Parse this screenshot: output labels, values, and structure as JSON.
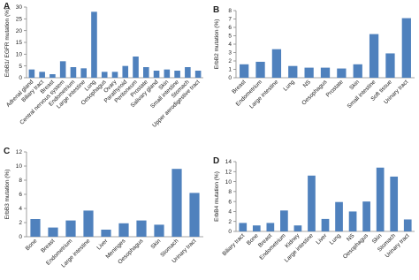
{
  "chart_data": [
    {
      "type": "bar",
      "label": "A",
      "y_label": "ErbB1/ EGFR mutation (%)",
      "color": "#4f81bd",
      "categories": [
        "Adrenal gland",
        "Biliary tract",
        "Breast",
        "Central nervous system",
        "Endometrium",
        "Large intestine",
        "Lung",
        "Oesophagus",
        "Ovary",
        "Parathyroid",
        "Peritoneum",
        "Prostate",
        "Salivary gland",
        "Skin",
        "Small intestine",
        "Stomach",
        "Upper aerodigestive tract"
      ],
      "values": [
        3.5,
        2.5,
        1.5,
        7,
        4.5,
        4,
        28,
        2.5,
        2.5,
        5,
        9,
        4.5,
        3,
        3.5,
        3,
        4.5,
        3
      ],
      "ylim": [
        0,
        30
      ],
      "yticks": [
        0,
        5,
        10,
        15,
        20,
        25,
        30
      ]
    },
    {
      "type": "bar",
      "label": "B",
      "y_label": "ErbB2 mutation (%)",
      "color": "#4f81bd",
      "categories": [
        "Breast",
        "Endometrium",
        "Large intestine",
        "Lung",
        "NS",
        "Oesophagus",
        "Prostate",
        "Skin",
        "Small intestine",
        "Soft tissue",
        "Urinary tract"
      ],
      "values": [
        1.6,
        1.9,
        3.4,
        1.4,
        1.2,
        1.2,
        1.1,
        1.6,
        5.2,
        2.9,
        7.1
      ],
      "ylim": [
        0,
        8
      ],
      "yticks": [
        0,
        1,
        2,
        3,
        4,
        5,
        6,
        7,
        8
      ]
    },
    {
      "type": "bar",
      "label": "C",
      "y_label": "ErbB3 mutation (%)",
      "color": "#4f81bd",
      "categories": [
        "Bone",
        "Breast",
        "Endometrium",
        "Large intestine",
        "Liver",
        "Meninges",
        "Oesophagus",
        "Skin",
        "Stomach",
        "Urinary tract"
      ],
      "values": [
        2.5,
        1.3,
        2.3,
        3.7,
        1.0,
        1.9,
        2.3,
        1.7,
        9.6,
        6.2
      ],
      "ylim": [
        0,
        12
      ],
      "yticks": [
        0,
        2,
        4,
        6,
        8,
        10,
        12
      ]
    },
    {
      "type": "bar",
      "label": "D",
      "y_label": "ErbB4 mutation (%)",
      "color": "#4f81bd",
      "categories": [
        "Biliary tract",
        "Bone",
        "Breast",
        "Endometrium",
        "Kidney",
        "Large intestine",
        "Liver",
        "Lung",
        "NS",
        "Oesophagus",
        "Skin",
        "Stomach",
        "Urinary tract"
      ],
      "values": [
        1.7,
        1.2,
        1.7,
        4.2,
        1.2,
        11.2,
        2.5,
        5.9,
        4.0,
        6.0,
        12.8,
        11.0,
        2.4
      ],
      "ylim": [
        0,
        14
      ],
      "yticks": [
        0,
        2,
        4,
        6,
        8,
        10,
        12,
        14
      ]
    }
  ]
}
